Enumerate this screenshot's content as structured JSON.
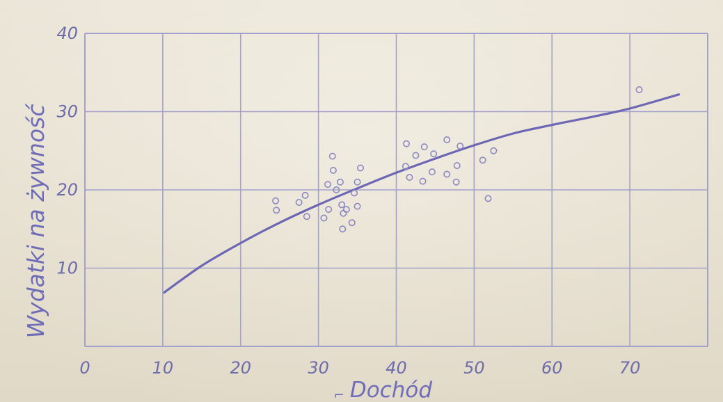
{
  "chart_data": {
    "type": "scatter",
    "title": "",
    "xlabel": "Dochód",
    "ylabel": "Wydatki na żywność",
    "xlim": [
      0,
      80
    ],
    "ylim": [
      0,
      40
    ],
    "xticks": [
      0,
      10,
      20,
      30,
      40,
      50,
      60,
      70
    ],
    "yticks": [
      10,
      20,
      30,
      40
    ],
    "grid": true,
    "colors": {
      "grid": "#a3a0cb",
      "text": "#6d6cab",
      "curve": "#6d66b4",
      "points": "#8c88c2"
    },
    "series": [
      {
        "type": "scatter",
        "points": [
          {
            "x": 24.5,
            "y": 18.6
          },
          {
            "x": 24.6,
            "y": 17.4
          },
          {
            "x": 27.5,
            "y": 18.4
          },
          {
            "x": 28.3,
            "y": 19.3
          },
          {
            "x": 28.5,
            "y": 16.6
          },
          {
            "x": 30.7,
            "y": 16.4
          },
          {
            "x": 31.2,
            "y": 20.7
          },
          {
            "x": 31.3,
            "y": 17.5
          },
          {
            "x": 31.8,
            "y": 24.3
          },
          {
            "x": 31.9,
            "y": 22.5
          },
          {
            "x": 32.3,
            "y": 20.0
          },
          {
            "x": 32.8,
            "y": 21.0
          },
          {
            "x": 33.0,
            "y": 18.1
          },
          {
            "x": 33.1,
            "y": 15.0
          },
          {
            "x": 33.2,
            "y": 17.0
          },
          {
            "x": 33.6,
            "y": 17.5
          },
          {
            "x": 34.3,
            "y": 15.8
          },
          {
            "x": 34.6,
            "y": 19.6
          },
          {
            "x": 35.0,
            "y": 21.0
          },
          {
            "x": 35.0,
            "y": 17.9
          },
          {
            "x": 35.4,
            "y": 22.8
          },
          {
            "x": 41.2,
            "y": 23.0
          },
          {
            "x": 41.3,
            "y": 25.9
          },
          {
            "x": 41.7,
            "y": 21.6
          },
          {
            "x": 42.5,
            "y": 24.4
          },
          {
            "x": 43.4,
            "y": 21.1
          },
          {
            "x": 43.6,
            "y": 25.5
          },
          {
            "x": 44.6,
            "y": 22.3
          },
          {
            "x": 44.8,
            "y": 24.6
          },
          {
            "x": 46.5,
            "y": 22.0
          },
          {
            "x": 46.5,
            "y": 26.4
          },
          {
            "x": 47.7,
            "y": 21.0
          },
          {
            "x": 47.8,
            "y": 23.1
          },
          {
            "x": 48.2,
            "y": 25.6
          },
          {
            "x": 51.1,
            "y": 23.8
          },
          {
            "x": 51.8,
            "y": 18.9
          },
          {
            "x": 52.5,
            "y": 25.0
          },
          {
            "x": 71.2,
            "y": 32.8
          }
        ]
      },
      {
        "type": "line",
        "x": [
          10.2,
          15,
          20,
          25,
          30,
          35,
          40,
          45,
          50,
          55,
          60,
          65,
          70,
          76.3
        ],
        "y": [
          6.9,
          10.3,
          13.2,
          15.8,
          18.1,
          20.2,
          22.2,
          24.0,
          25.7,
          27.2,
          28.3,
          29.3,
          30.4,
          32.2
        ]
      }
    ],
    "axis_label_mark": "⌐"
  }
}
